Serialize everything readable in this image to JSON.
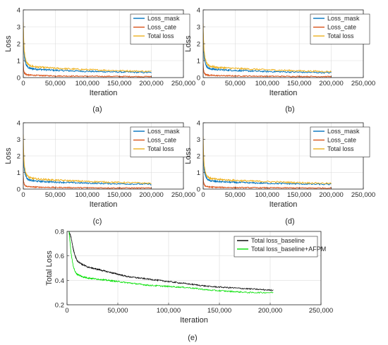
{
  "figure": {
    "panels": [
      {
        "caption": "(a)",
        "chart_data": {
          "type": "line",
          "xlabel": "Iteration",
          "ylabel": "Loss",
          "xlim": [
            0,
            250000
          ],
          "ylim": [
            0,
            4
          ],
          "xticks": [
            0,
            50000,
            100000,
            150000,
            200000,
            250000
          ],
          "xtick_labels": [
            "0",
            "50,000",
            "100,000",
            "150,000",
            "200,000",
            "250,000"
          ],
          "yticks": [
            0,
            1,
            2,
            3,
            4
          ],
          "ytick_labels": [
            "0",
            "1",
            "2",
            "3",
            "4"
          ],
          "grid": true,
          "legend": "top-right",
          "series": [
            {
              "name": "Loss_mask",
              "color": "#0072BD",
              "x": [
                0,
                500,
                1500,
                3000,
                5000,
                7500,
                10000,
                20000,
                50000,
                100000,
                150000,
                200000
              ],
              "y": [
                2.9,
                2.0,
                1.3,
                0.95,
                0.72,
                0.6,
                0.55,
                0.5,
                0.43,
                0.37,
                0.33,
                0.3
              ]
            },
            {
              "name": "Loss_cate",
              "color": "#D95319",
              "x": [
                0,
                500,
                1500,
                3000,
                5000,
                7500,
                10000,
                20000,
                50000,
                100000,
                150000,
                200000
              ],
              "y": [
                0.9,
                0.5,
                0.3,
                0.22,
                0.18,
                0.16,
                0.15,
                0.13,
                0.1,
                0.08,
                0.07,
                0.06
              ]
            },
            {
              "name": "Total loss",
              "color": "#EDB120",
              "x": [
                0,
                500,
                1500,
                3000,
                5000,
                7500,
                10000,
                20000,
                50000,
                100000,
                150000,
                200000
              ],
              "y": [
                3.3,
                2.4,
                1.6,
                1.15,
                0.9,
                0.78,
                0.7,
                0.63,
                0.55,
                0.47,
                0.41,
                0.36
              ]
            }
          ]
        }
      },
      {
        "caption": "(b)",
        "chart_data": {
          "type": "line",
          "xlabel": "Iteration",
          "ylabel": "Loss",
          "xlim": [
            0,
            250000
          ],
          "ylim": [
            0,
            4
          ],
          "xticks": [
            0,
            50000,
            100000,
            150000,
            200000,
            250000
          ],
          "xtick_labels": [
            "0",
            "50,000",
            "100,000",
            "150,000",
            "200,000",
            "250,000"
          ],
          "yticks": [
            0,
            1,
            2,
            3,
            4
          ],
          "ytick_labels": [
            "0",
            "1",
            "2",
            "3",
            "4"
          ],
          "grid": true,
          "legend": "top-right",
          "series": [
            {
              "name": "Loss_mask",
              "color": "#0072BD",
              "x": [
                0,
                500,
                1500,
                3000,
                5000,
                7500,
                10000,
                20000,
                50000,
                100000,
                150000,
                200000
              ],
              "y": [
                2.8,
                1.9,
                1.25,
                0.9,
                0.7,
                0.58,
                0.53,
                0.48,
                0.42,
                0.36,
                0.32,
                0.29
              ]
            },
            {
              "name": "Loss_cate",
              "color": "#D95319",
              "x": [
                0,
                500,
                1500,
                3000,
                5000,
                7500,
                10000,
                20000,
                50000,
                100000,
                150000,
                200000
              ],
              "y": [
                0.85,
                0.48,
                0.3,
                0.21,
                0.17,
                0.15,
                0.14,
                0.12,
                0.1,
                0.08,
                0.07,
                0.06
              ]
            },
            {
              "name": "Total loss",
              "color": "#EDB120",
              "x": [
                0,
                500,
                1500,
                3000,
                5000,
                7500,
                10000,
                20000,
                50000,
                100000,
                150000,
                200000
              ],
              "y": [
                3.2,
                2.3,
                1.55,
                1.1,
                0.88,
                0.76,
                0.68,
                0.61,
                0.54,
                0.46,
                0.4,
                0.35
              ]
            }
          ]
        }
      },
      {
        "caption": "(c)",
        "chart_data": {
          "type": "line",
          "xlabel": "Iteration",
          "ylabel": "Loss",
          "xlim": [
            0,
            250000
          ],
          "ylim": [
            0,
            4
          ],
          "xticks": [
            0,
            50000,
            100000,
            150000,
            200000,
            250000
          ],
          "xtick_labels": [
            "0",
            "50,000",
            "100,000",
            "150,000",
            "200,000",
            "250,000"
          ],
          "yticks": [
            0,
            1,
            2,
            3,
            4
          ],
          "ytick_labels": [
            "0",
            "1",
            "2",
            "3",
            "4"
          ],
          "grid": true,
          "legend": "top-right",
          "series": [
            {
              "name": "Loss_mask",
              "color": "#0072BD",
              "x": [
                0,
                500,
                1500,
                3000,
                5000,
                7500,
                10000,
                20000,
                50000,
                100000,
                150000,
                200000
              ],
              "y": [
                2.7,
                1.85,
                1.2,
                0.9,
                0.7,
                0.58,
                0.53,
                0.48,
                0.42,
                0.36,
                0.32,
                0.29
              ]
            },
            {
              "name": "Loss_cate",
              "color": "#D95319",
              "x": [
                0,
                500,
                1500,
                3000,
                5000,
                7500,
                10000,
                20000,
                50000,
                100000,
                150000,
                200000
              ],
              "y": [
                0.8,
                0.45,
                0.28,
                0.2,
                0.17,
                0.15,
                0.14,
                0.12,
                0.1,
                0.08,
                0.07,
                0.06
              ]
            },
            {
              "name": "Total loss",
              "color": "#EDB120",
              "x": [
                0,
                500,
                1500,
                3000,
                5000,
                7500,
                10000,
                20000,
                50000,
                100000,
                150000,
                200000
              ],
              "y": [
                3.3,
                2.3,
                1.5,
                1.1,
                0.88,
                0.76,
                0.68,
                0.61,
                0.54,
                0.46,
                0.4,
                0.35
              ]
            }
          ]
        }
      },
      {
        "caption": "(d)",
        "chart_data": {
          "type": "line",
          "xlabel": "Iteration",
          "ylabel": "Loss",
          "xlim": [
            0,
            250000
          ],
          "ylim": [
            0,
            4
          ],
          "xticks": [
            0,
            50000,
            100000,
            150000,
            200000,
            250000
          ],
          "xtick_labels": [
            "0",
            "50,000",
            "100,000",
            "150,000",
            "200,000",
            "250,000"
          ],
          "yticks": [
            0,
            1,
            2,
            3,
            4
          ],
          "ytick_labels": [
            "0",
            "1",
            "2",
            "3",
            "4"
          ],
          "grid": true,
          "legend": "top-right",
          "series": [
            {
              "name": "Loss_mask",
              "color": "#0072BD",
              "x": [
                0,
                500,
                1500,
                3000,
                5000,
                7500,
                10000,
                20000,
                50000,
                100000,
                150000,
                200000
              ],
              "y": [
                2.6,
                1.8,
                1.2,
                0.88,
                0.68,
                0.56,
                0.51,
                0.46,
                0.4,
                0.35,
                0.31,
                0.28
              ]
            },
            {
              "name": "Loss_cate",
              "color": "#D95319",
              "x": [
                0,
                500,
                1500,
                3000,
                5000,
                7500,
                10000,
                20000,
                50000,
                100000,
                150000,
                200000
              ],
              "y": [
                0.8,
                0.45,
                0.28,
                0.2,
                0.16,
                0.14,
                0.13,
                0.11,
                0.09,
                0.08,
                0.07,
                0.06
              ]
            },
            {
              "name": "Total loss",
              "color": "#EDB120",
              "x": [
                0,
                500,
                1500,
                3000,
                5000,
                7500,
                10000,
                20000,
                50000,
                100000,
                150000,
                200000
              ],
              "y": [
                3.2,
                2.25,
                1.5,
                1.08,
                0.85,
                0.73,
                0.66,
                0.59,
                0.52,
                0.45,
                0.39,
                0.34
              ]
            }
          ]
        }
      },
      {
        "caption": "(e)",
        "chart_data": {
          "type": "line",
          "xlabel": "Iteration",
          "ylabel": "Total Loss",
          "xlim": [
            0,
            250000
          ],
          "ylim": [
            0.2,
            0.8
          ],
          "xticks": [
            0,
            50000,
            100000,
            150000,
            200000,
            250000
          ],
          "xtick_labels": [
            "0",
            "50,000",
            "100,000",
            "150,000",
            "200,000",
            "250,000"
          ],
          "yticks": [
            0.2,
            0.4,
            0.6,
            0.8
          ],
          "ytick_labels": [
            "0.2",
            "0.4",
            "0.6",
            "0.8"
          ],
          "grid": true,
          "legend": "top-right",
          "series": [
            {
              "name": "Total loss_baseline",
              "color": "#000000",
              "x": [
                2000,
                4000,
                6000,
                8000,
                10000,
                15000,
                20000,
                30000,
                40000,
                50000,
                60000,
                80000,
                100000,
                120000,
                140000,
                160000,
                180000,
                200000,
                203000
              ],
              "y": [
                0.8,
                0.75,
                0.66,
                0.6,
                0.56,
                0.53,
                0.51,
                0.49,
                0.47,
                0.45,
                0.43,
                0.41,
                0.39,
                0.37,
                0.35,
                0.34,
                0.33,
                0.32,
                0.32
              ]
            },
            {
              "name": "Total loss_baseline+AFPM",
              "color": "#00E000",
              "x": [
                2000,
                4000,
                6000,
                8000,
                10000,
                15000,
                20000,
                30000,
                40000,
                50000,
                60000,
                80000,
                100000,
                120000,
                140000,
                160000,
                180000,
                200000,
                203000
              ],
              "y": [
                0.8,
                0.62,
                0.52,
                0.47,
                0.45,
                0.43,
                0.42,
                0.41,
                0.4,
                0.39,
                0.38,
                0.36,
                0.35,
                0.34,
                0.32,
                0.31,
                0.3,
                0.3,
                0.3
              ]
            }
          ]
        }
      }
    ]
  }
}
